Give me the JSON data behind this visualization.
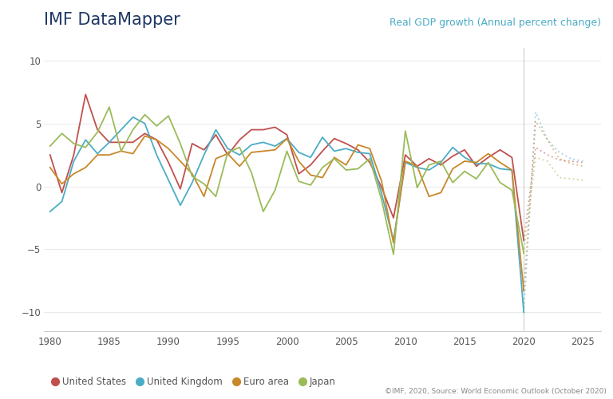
{
  "title_left": "IMF DataMapper",
  "title_right": "Real GDP growth (Annual percent change)",
  "footnote": "©IMF, 2020, Source: World Economic Outlook (October 2020)",
  "colors": {
    "US": "#c0504d",
    "UK": "#4bacc6",
    "Euro": "#c9872a",
    "Japan": "#9bbb59"
  },
  "legend_labels": [
    "United States",
    "United Kingdom",
    "Euro area",
    "Japan"
  ],
  "ylim": [
    -11.5,
    11
  ],
  "yticks": [
    -10,
    -5,
    0,
    5,
    10
  ],
  "xlim": [
    1979.5,
    2026.5
  ],
  "xticks": [
    1980,
    1985,
    1990,
    1995,
    2000,
    2005,
    2010,
    2015,
    2020,
    2025
  ],
  "forecast_start": 2020,
  "US_hist": {
    "years": [
      1980,
      1981,
      1982,
      1983,
      1984,
      1985,
      1986,
      1987,
      1988,
      1989,
      1990,
      1991,
      1992,
      1993,
      1994,
      1995,
      1996,
      1997,
      1998,
      1999,
      2000,
      2001,
      2002,
      2003,
      2004,
      2005,
      2006,
      2007,
      2008,
      2009,
      2010,
      2011,
      2012,
      2013,
      2014,
      2015,
      2016,
      2017,
      2018,
      2019,
      2020
    ],
    "values": [
      2.5,
      -0.5,
      2.5,
      7.3,
      4.5,
      3.5,
      3.5,
      3.5,
      4.2,
      3.7,
      1.9,
      -0.2,
      3.4,
      2.9,
      4.1,
      2.5,
      3.7,
      4.5,
      4.5,
      4.7,
      4.1,
      1.0,
      1.7,
      2.8,
      3.8,
      3.4,
      2.9,
      1.9,
      -0.1,
      -2.5,
      2.5,
      1.6,
      2.2,
      1.7,
      2.4,
      2.9,
      1.6,
      2.3,
      2.9,
      2.3,
      -4.3
    ]
  },
  "US_fore": {
    "years": [
      2020,
      2021,
      2022,
      2023,
      2024,
      2025
    ],
    "values": [
      -4.3,
      3.1,
      2.5,
      2.1,
      2.0,
      1.9
    ]
  },
  "UK_hist": {
    "years": [
      1980,
      1981,
      1982,
      1983,
      1984,
      1985,
      1986,
      1987,
      1988,
      1989,
      1990,
      1991,
      1992,
      1993,
      1994,
      1995,
      1996,
      1997,
      1998,
      1999,
      2000,
      2001,
      2002,
      2003,
      2004,
      2005,
      2006,
      2007,
      2008,
      2009,
      2010,
      2011,
      2012,
      2013,
      2014,
      2015,
      2016,
      2017,
      2018,
      2019,
      2020
    ],
    "values": [
      -2.0,
      -1.2,
      2.0,
      3.7,
      2.6,
      3.5,
      4.5,
      5.5,
      5.0,
      2.5,
      0.5,
      -1.5,
      0.3,
      2.5,
      4.5,
      3.0,
      2.5,
      3.3,
      3.5,
      3.2,
      3.8,
      2.7,
      2.3,
      3.9,
      2.8,
      3.0,
      2.7,
      2.6,
      -0.6,
      -4.3,
      1.9,
      1.5,
      1.3,
      1.9,
      3.1,
      2.3,
      1.8,
      1.8,
      1.4,
      1.3,
      -10.0
    ]
  },
  "UK_fore": {
    "years": [
      2020,
      2021,
      2022,
      2023,
      2024,
      2025
    ],
    "values": [
      -10.0,
      5.9,
      3.7,
      2.7,
      2.2,
      2.0
    ]
  },
  "Euro_hist": {
    "years": [
      1980,
      1981,
      1982,
      1983,
      1984,
      1985,
      1986,
      1987,
      1988,
      1989,
      1990,
      1991,
      1992,
      1993,
      1994,
      1995,
      1996,
      1997,
      1998,
      1999,
      2000,
      2001,
      2002,
      2003,
      2004,
      2005,
      2006,
      2007,
      2008,
      2009,
      2010,
      2011,
      2012,
      2013,
      2014,
      2015,
      2016,
      2017,
      2018,
      2019,
      2020
    ],
    "values": [
      1.5,
      0.2,
      1.0,
      1.5,
      2.5,
      2.5,
      2.8,
      2.6,
      4.0,
      3.7,
      3.0,
      2.0,
      1.0,
      -0.8,
      2.2,
      2.6,
      1.6,
      2.7,
      2.8,
      2.9,
      3.8,
      2.0,
      0.9,
      0.7,
      2.3,
      1.7,
      3.3,
      3.0,
      0.4,
      -4.5,
      2.0,
      1.6,
      -0.8,
      -0.5,
      1.4,
      2.0,
      1.9,
      2.6,
      1.9,
      1.3,
      -8.3
    ]
  },
  "Euro_fore": {
    "years": [
      2020,
      2021,
      2022,
      2023,
      2024,
      2025
    ],
    "values": [
      -8.3,
      5.2,
      3.7,
      2.2,
      1.8,
      1.6
    ]
  },
  "Japan_hist": {
    "years": [
      1980,
      1981,
      1982,
      1983,
      1984,
      1985,
      1986,
      1987,
      1988,
      1989,
      1990,
      1991,
      1992,
      1993,
      1994,
      1995,
      1996,
      1997,
      1998,
      1999,
      2000,
      2001,
      2002,
      2003,
      2004,
      2005,
      2006,
      2007,
      2008,
      2009,
      2010,
      2011,
      2012,
      2013,
      2014,
      2015,
      2016,
      2017,
      2018,
      2019,
      2020
    ],
    "values": [
      3.2,
      4.2,
      3.4,
      3.1,
      4.3,
      6.3,
      2.8,
      4.5,
      5.7,
      4.8,
      5.6,
      3.4,
      0.8,
      0.2,
      -0.8,
      2.7,
      3.1,
      1.1,
      -2.0,
      -0.3,
      2.8,
      0.4,
      0.1,
      1.5,
      2.2,
      1.3,
      1.4,
      2.2,
      -1.1,
      -5.4,
      4.4,
      -0.1,
      1.7,
      2.0,
      0.3,
      1.2,
      0.6,
      1.9,
      0.3,
      -0.3,
      -5.3
    ]
  },
  "Japan_fore": {
    "years": [
      2020,
      2021,
      2022,
      2023,
      2024,
      2025
    ],
    "values": [
      -5.3,
      2.3,
      2.0,
      0.7,
      0.6,
      0.5
    ]
  }
}
